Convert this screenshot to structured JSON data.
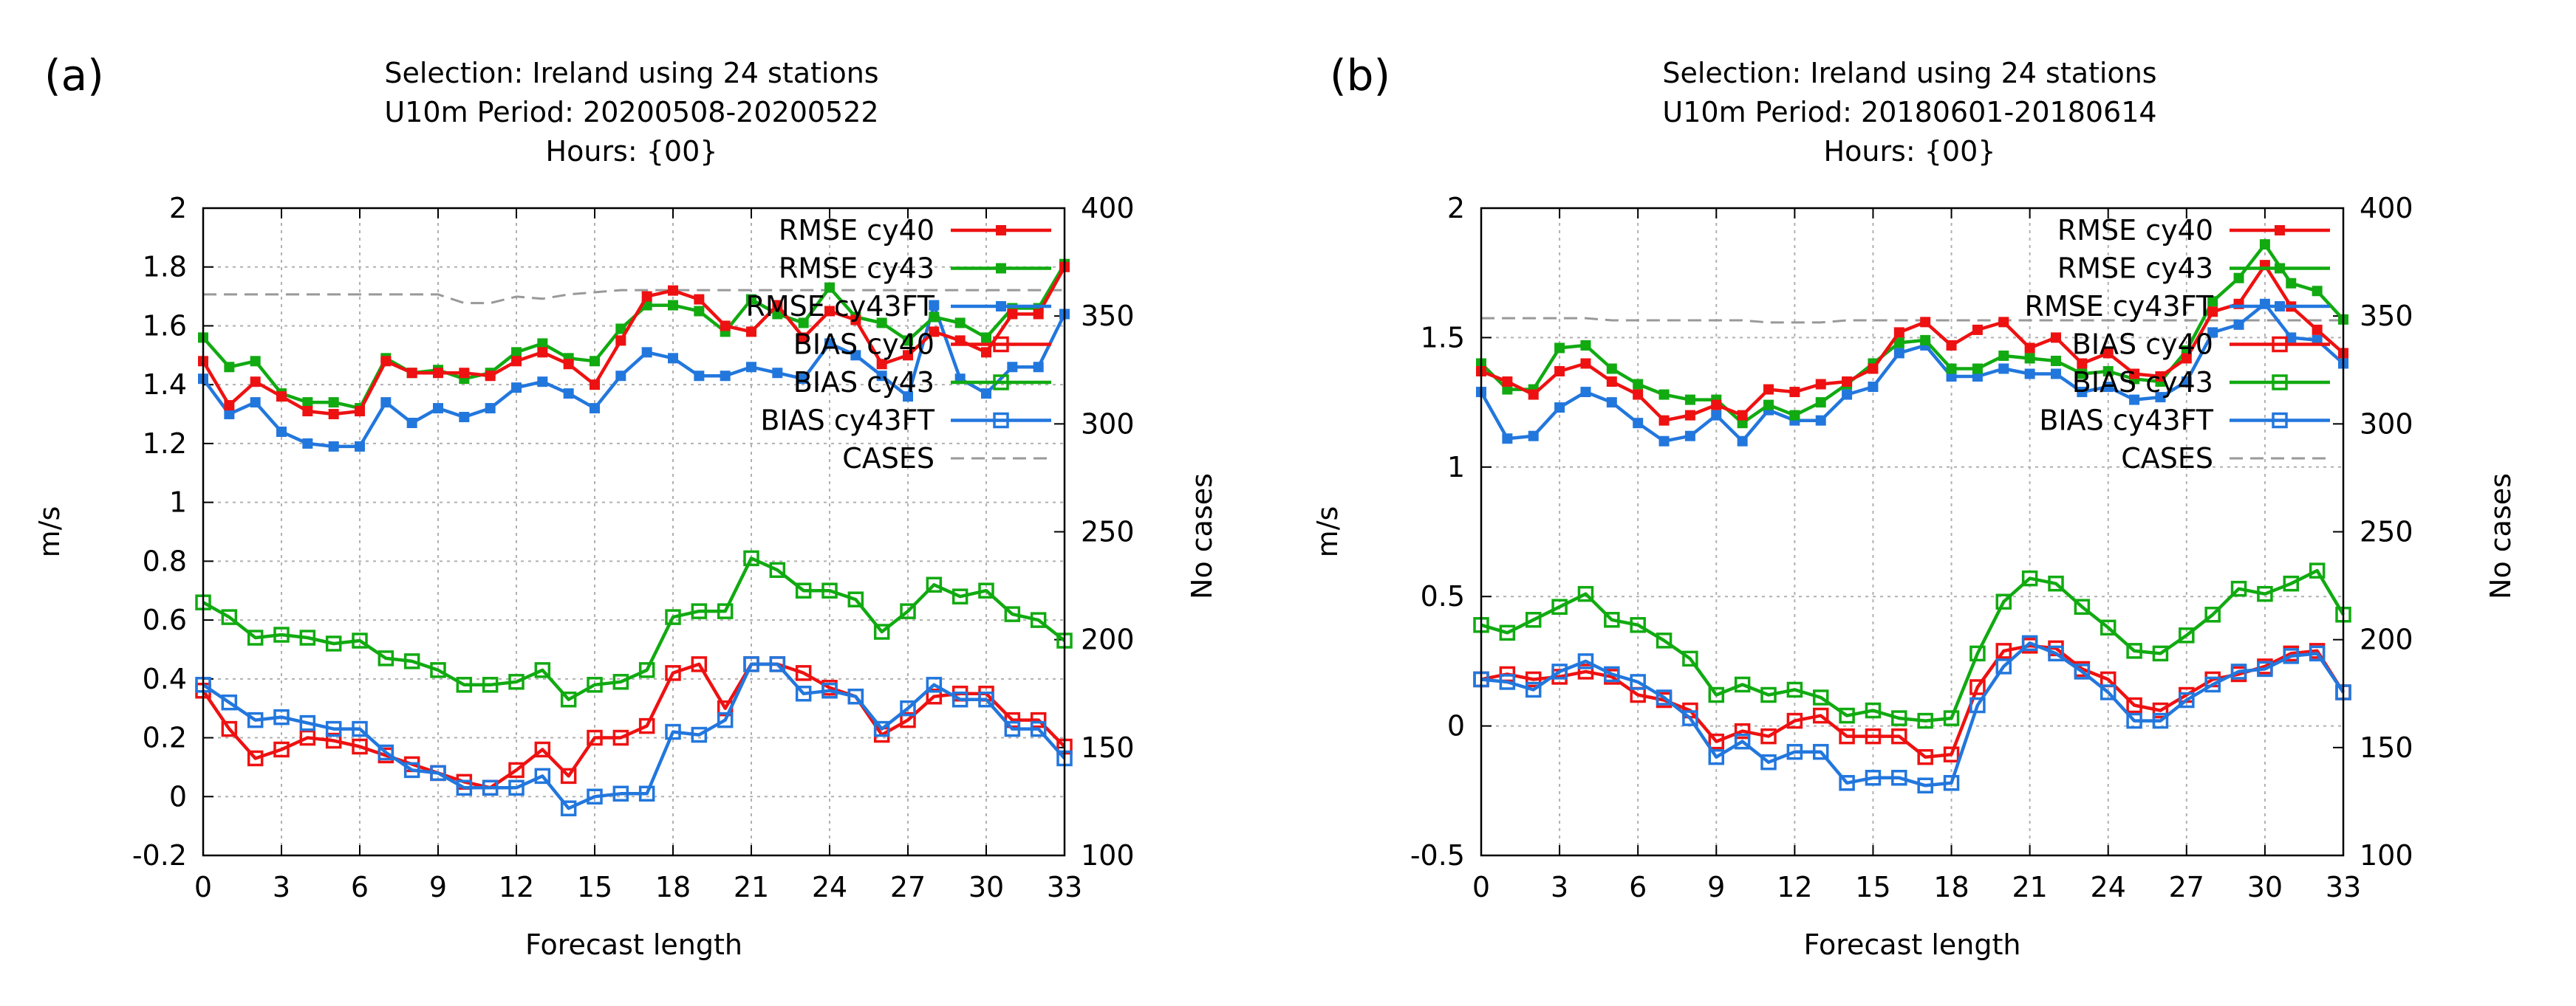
{
  "chart_data": [
    {
      "panel_label": "(a)",
      "type": "line",
      "title": [
        "Selection: Ireland using    24 stations",
        "U10m   Period: 20200508-20200522",
        "Hours: {00}"
      ],
      "xlabel": "Forecast length",
      "ylabel": "m/s",
      "y2label": "No cases",
      "xlim": [
        0,
        33
      ],
      "ylim": [
        -0.2,
        2
      ],
      "y2lim": [
        100,
        400
      ],
      "xticks": [
        "0",
        "3",
        "6",
        "9",
        "12",
        "15",
        "18",
        "21",
        "24",
        "27",
        "30",
        "33"
      ],
      "yticks": [
        "-0.2",
        "0",
        "0.2",
        "0.4",
        "0.6",
        "0.8",
        "1",
        "1.2",
        "1.4",
        "1.6",
        "1.8",
        "2"
      ],
      "y2ticks": [
        "100",
        "150",
        "200",
        "250",
        "300",
        "350",
        "400"
      ],
      "grid": true,
      "legend": "top-right",
      "x": [
        0,
        1,
        2,
        3,
        4,
        5,
        6,
        7,
        8,
        9,
        10,
        11,
        12,
        13,
        14,
        15,
        16,
        17,
        18,
        19,
        20,
        21,
        22,
        23,
        24,
        25,
        26,
        27,
        28,
        29,
        30,
        31,
        32,
        33
      ],
      "series": [
        {
          "name": "RMSE cy40",
          "color": "#ee1111",
          "marker": "filled",
          "axis": "y",
          "values": [
            1.48,
            1.33,
            1.41,
            1.36,
            1.31,
            1.3,
            1.31,
            1.48,
            1.44,
            1.44,
            1.44,
            1.43,
            1.48,
            1.51,
            1.47,
            1.4,
            1.55,
            1.7,
            1.72,
            1.69,
            1.6,
            1.58,
            1.67,
            1.56,
            1.65,
            1.62,
            1.47,
            1.5,
            1.58,
            1.55,
            1.51,
            1.64,
            1.64,
            1.8
          ]
        },
        {
          "name": "RMSE cy43",
          "color": "#11aa11",
          "marker": "filled",
          "axis": "y",
          "values": [
            1.56,
            1.46,
            1.48,
            1.37,
            1.34,
            1.34,
            1.32,
            1.49,
            1.44,
            1.45,
            1.42,
            1.44,
            1.51,
            1.54,
            1.49,
            1.48,
            1.59,
            1.67,
            1.67,
            1.65,
            1.58,
            1.69,
            1.64,
            1.61,
            1.73,
            1.63,
            1.61,
            1.55,
            1.63,
            1.61,
            1.56,
            1.66,
            1.66,
            1.81
          ]
        },
        {
          "name": "RMSE cy43FT",
          "color": "#2277dd",
          "marker": "filled",
          "axis": "y",
          "values": [
            1.42,
            1.3,
            1.34,
            1.24,
            1.2,
            1.19,
            1.19,
            1.34,
            1.27,
            1.32,
            1.29,
            1.32,
            1.39,
            1.41,
            1.37,
            1.32,
            1.43,
            1.51,
            1.49,
            1.43,
            1.43,
            1.46,
            1.44,
            1.42,
            1.54,
            1.5,
            1.43,
            1.36,
            1.67,
            1.42,
            1.37,
            1.46,
            1.46,
            1.64
          ]
        },
        {
          "name": "BIAS cy40",
          "color": "#ee1111",
          "marker": "open",
          "axis": "y",
          "values": [
            0.36,
            0.23,
            0.13,
            0.16,
            0.2,
            0.19,
            0.17,
            0.14,
            0.11,
            0.08,
            0.05,
            0.03,
            0.09,
            0.16,
            0.07,
            0.2,
            0.2,
            0.24,
            0.42,
            0.45,
            0.3,
            0.45,
            0.45,
            0.42,
            0.37,
            0.34,
            0.21,
            0.26,
            0.34,
            0.35,
            0.35,
            0.26,
            0.26,
            0.17
          ]
        },
        {
          "name": "BIAS cy43",
          "color": "#11aa11",
          "marker": "open",
          "axis": "y",
          "values": [
            0.66,
            0.61,
            0.54,
            0.55,
            0.54,
            0.52,
            0.53,
            0.47,
            0.46,
            0.43,
            0.38,
            0.38,
            0.39,
            0.43,
            0.33,
            0.38,
            0.39,
            0.43,
            0.61,
            0.63,
            0.63,
            0.81,
            0.77,
            0.7,
            0.7,
            0.67,
            0.56,
            0.63,
            0.72,
            0.68,
            0.7,
            0.62,
            0.6,
            0.53
          ]
        },
        {
          "name": "BIAS cy43FT",
          "color": "#2277dd",
          "marker": "open",
          "axis": "y",
          "values": [
            0.38,
            0.32,
            0.26,
            0.27,
            0.25,
            0.23,
            0.23,
            0.15,
            0.09,
            0.08,
            0.03,
            0.03,
            0.03,
            0.07,
            -0.04,
            0.0,
            0.01,
            0.01,
            0.22,
            0.21,
            0.26,
            0.45,
            0.45,
            0.35,
            0.36,
            0.34,
            0.23,
            0.3,
            0.38,
            0.33,
            0.33,
            0.23,
            0.23,
            0.13
          ]
        },
        {
          "name": "CASES",
          "color": "#999999",
          "marker": "none",
          "dashed": true,
          "axis": "y2",
          "values": [
            360,
            360,
            360,
            360,
            360,
            360,
            360,
            360,
            360,
            360,
            356,
            356,
            359,
            358,
            360,
            361,
            362,
            362,
            362,
            362,
            362,
            362,
            362,
            362,
            362,
            362,
            362,
            362,
            362,
            362,
            362,
            362,
            362,
            362
          ]
        }
      ]
    },
    {
      "panel_label": "(b)",
      "type": "line",
      "title": [
        "Selection: Ireland using    24 stations",
        "U10m   Period: 20180601-20180614",
        "Hours: {00}"
      ],
      "xlabel": "Forecast length",
      "ylabel": "m/s",
      "y2label": "No cases",
      "xlim": [
        0,
        33
      ],
      "ylim": [
        -0.5,
        2
      ],
      "y2lim": [
        100,
        400
      ],
      "xticks": [
        "0",
        "3",
        "6",
        "9",
        "12",
        "15",
        "18",
        "21",
        "24",
        "27",
        "30",
        "33"
      ],
      "yticks": [
        "-0.5",
        "0",
        "0.5",
        "1",
        "1.5",
        "2"
      ],
      "y2ticks": [
        "100",
        "150",
        "200",
        "250",
        "300",
        "350",
        "400"
      ],
      "grid": true,
      "legend": "top-right",
      "x": [
        0,
        1,
        2,
        3,
        4,
        5,
        6,
        7,
        8,
        9,
        10,
        11,
        12,
        13,
        14,
        15,
        16,
        17,
        18,
        19,
        20,
        21,
        22,
        23,
        24,
        25,
        26,
        27,
        28,
        29,
        30,
        31,
        32,
        33
      ],
      "series": [
        {
          "name": "RMSE cy40",
          "color": "#ee1111",
          "marker": "filled",
          "axis": "y",
          "values": [
            1.37,
            1.33,
            1.28,
            1.37,
            1.4,
            1.33,
            1.28,
            1.18,
            1.2,
            1.24,
            1.2,
            1.3,
            1.29,
            1.32,
            1.33,
            1.38,
            1.52,
            1.56,
            1.47,
            1.53,
            1.56,
            1.46,
            1.5,
            1.4,
            1.44,
            1.36,
            1.35,
            1.42,
            1.6,
            1.63,
            1.78,
            1.62,
            1.53,
            1.44
          ]
        },
        {
          "name": "RMSE cy43",
          "color": "#11aa11",
          "marker": "filled",
          "axis": "y",
          "values": [
            1.4,
            1.3,
            1.3,
            1.46,
            1.47,
            1.38,
            1.32,
            1.28,
            1.26,
            1.26,
            1.17,
            1.24,
            1.2,
            1.25,
            1.32,
            1.4,
            1.48,
            1.49,
            1.38,
            1.38,
            1.43,
            1.42,
            1.41,
            1.36,
            1.37,
            1.34,
            1.33,
            1.45,
            1.64,
            1.73,
            1.86,
            1.71,
            1.68,
            1.57
          ]
        },
        {
          "name": "RMSE cy43FT",
          "color": "#2277dd",
          "marker": "filled",
          "axis": "y",
          "values": [
            1.29,
            1.11,
            1.12,
            1.23,
            1.29,
            1.25,
            1.17,
            1.1,
            1.12,
            1.2,
            1.1,
            1.22,
            1.18,
            1.18,
            1.28,
            1.31,
            1.44,
            1.47,
            1.35,
            1.35,
            1.38,
            1.36,
            1.36,
            1.29,
            1.31,
            1.26,
            1.27,
            1.33,
            1.52,
            1.55,
            1.63,
            1.5,
            1.49,
            1.4
          ]
        },
        {
          "name": "BIAS cy40",
          "color": "#ee1111",
          "marker": "open",
          "axis": "y",
          "values": [
            0.18,
            0.2,
            0.18,
            0.19,
            0.21,
            0.19,
            0.12,
            0.1,
            0.06,
            -0.06,
            -0.02,
            -0.04,
            0.02,
            0.04,
            -0.04,
            -0.04,
            -0.04,
            -0.12,
            -0.11,
            0.15,
            0.29,
            0.31,
            0.3,
            0.22,
            0.18,
            0.08,
            0.06,
            0.12,
            0.18,
            0.2,
            0.23,
            0.28,
            0.29,
            0.13
          ]
        },
        {
          "name": "BIAS cy43",
          "color": "#11aa11",
          "marker": "open",
          "axis": "y",
          "values": [
            0.39,
            0.36,
            0.41,
            0.46,
            0.51,
            0.41,
            0.39,
            0.33,
            0.26,
            0.12,
            0.16,
            0.12,
            0.14,
            0.11,
            0.04,
            0.06,
            0.03,
            0.02,
            0.03,
            0.28,
            0.48,
            0.57,
            0.55,
            0.46,
            0.38,
            0.29,
            0.28,
            0.35,
            0.43,
            0.53,
            0.51,
            0.55,
            0.6,
            0.43
          ]
        },
        {
          "name": "BIAS cy43FT",
          "color": "#2277dd",
          "marker": "open",
          "axis": "y",
          "values": [
            0.18,
            0.17,
            0.14,
            0.21,
            0.25,
            0.2,
            0.17,
            0.11,
            0.03,
            -0.12,
            -0.06,
            -0.14,
            -0.1,
            -0.1,
            -0.22,
            -0.2,
            -0.2,
            -0.23,
            -0.22,
            0.08,
            0.23,
            0.32,
            0.28,
            0.21,
            0.13,
            0.02,
            0.02,
            0.1,
            0.16,
            0.21,
            0.22,
            0.27,
            0.28,
            0.13
          ]
        },
        {
          "name": "CASES",
          "color": "#999999",
          "marker": "none",
          "dashed": true,
          "axis": "y2",
          "values": [
            349,
            349,
            349,
            349,
            349,
            348,
            348,
            348,
            348,
            348,
            348,
            347,
            347,
            347,
            348,
            348,
            348,
            348,
            348,
            348,
            348,
            348,
            348,
            348,
            348,
            348,
            348,
            348,
            348,
            348,
            348,
            348,
            348,
            348
          ]
        }
      ]
    }
  ]
}
